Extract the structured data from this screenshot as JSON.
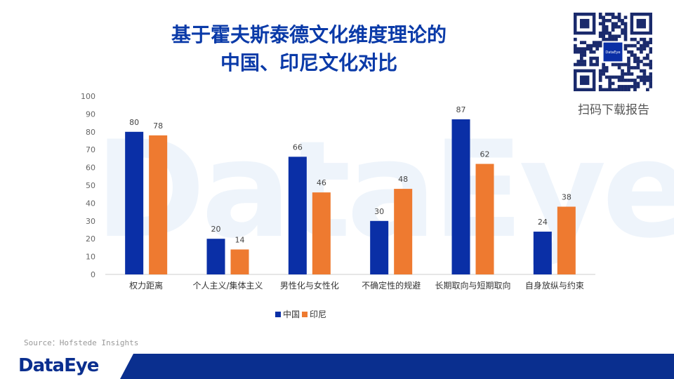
{
  "title_line1": "基于霍夫斯泰德文化维度理论的",
  "title_line2": "中国、印尼文化对比",
  "watermark": "DataEye",
  "qr": {
    "label": "扫码下载报告",
    "center_text": "DataEye"
  },
  "source": "Source：Hofstede Insights",
  "footer": {
    "logo": "DataEye"
  },
  "colors": {
    "china": "#0a2fa6",
    "indonesia": "#ee7a30",
    "title": "#0a3aa8",
    "footer": "#0a2f8f"
  },
  "chart_data": {
    "type": "bar",
    "categories": [
      "权力距离",
      "个人主义/集体主义",
      "男性化与女性化",
      "不确定性的规避",
      "长期取向与短期取向",
      "自身放纵与约束"
    ],
    "series": [
      {
        "name": "中国",
        "values": [
          80,
          20,
          66,
          30,
          87,
          24
        ]
      },
      {
        "name": "印尼",
        "values": [
          78,
          14,
          46,
          48,
          62,
          38
        ]
      }
    ],
    "ylim": [
      0,
      100
    ],
    "yticks": [
      0,
      10,
      20,
      30,
      40,
      50,
      60,
      70,
      80,
      90,
      100
    ],
    "legend_position": "bottom",
    "grid": false
  }
}
